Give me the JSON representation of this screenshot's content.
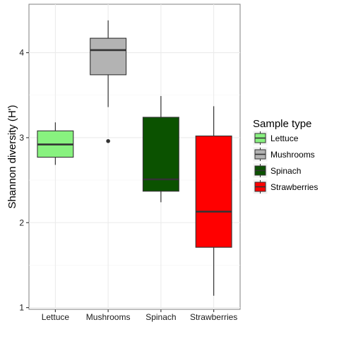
{
  "chart_data": {
    "type": "box",
    "ylabel": "Shannon diversity (H')",
    "xlabel": "",
    "ylim": [
      0.98,
      4.57
    ],
    "y_ticks": [
      1,
      2,
      3,
      4
    ],
    "grid": true,
    "legend_title": "Sample type",
    "legend_position": "right",
    "categories": [
      "Lettuce",
      "Mushrooms",
      "Spinach",
      "Strawberries"
    ],
    "series": [
      {
        "name": "Lettuce",
        "color": "#88f27f",
        "whisker_low": 2.68,
        "q1": 2.77,
        "median": 2.92,
        "q3": 3.08,
        "whisker_high": 3.18,
        "outliers": []
      },
      {
        "name": "Mushrooms",
        "color": "#b3b3b3",
        "whisker_low": 3.36,
        "q1": 3.74,
        "median": 4.03,
        "q3": 4.17,
        "whisker_high": 4.38,
        "outliers": [
          2.96
        ]
      },
      {
        "name": "Spinach",
        "color": "#0b5200",
        "whisker_low": 2.24,
        "q1": 2.37,
        "median": 2.51,
        "q3": 3.24,
        "whisker_high": 3.49,
        "outliers": []
      },
      {
        "name": "Strawberries",
        "color": "#ff0000",
        "whisker_low": 1.14,
        "q1": 1.71,
        "median": 2.13,
        "q3": 3.02,
        "whisker_high": 3.37,
        "outliers": []
      }
    ]
  }
}
